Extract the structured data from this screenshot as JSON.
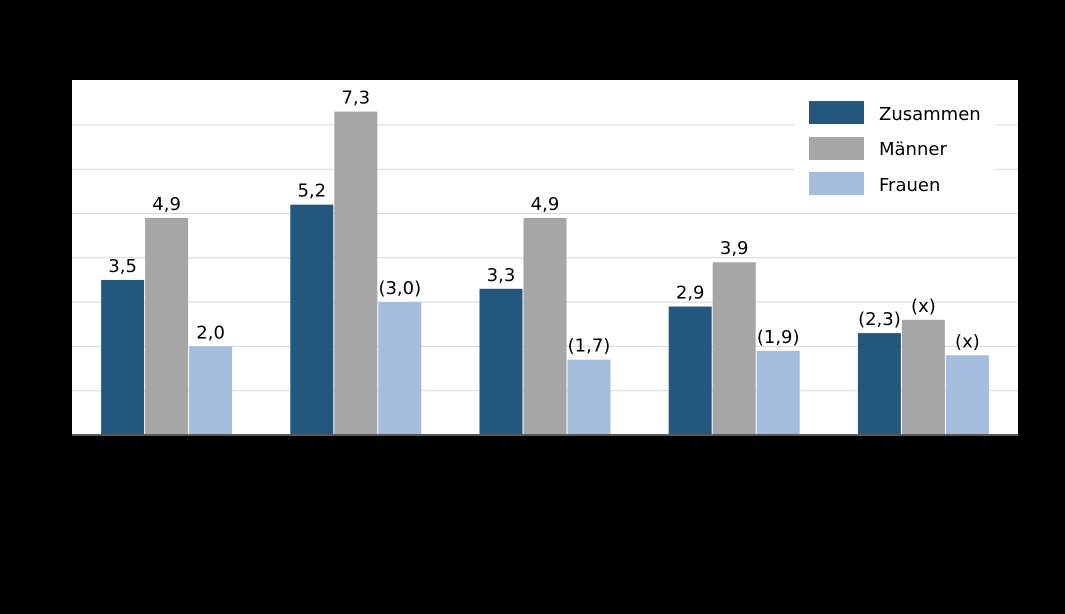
{
  "chart_data": {
    "type": "bar",
    "categories": [
      "",
      "",
      "",
      "",
      ""
    ],
    "series": [
      {
        "name": "Zusammen",
        "color": "#22577e",
        "values": [
          3.5,
          5.2,
          3.3,
          2.9,
          2.3
        ],
        "labels": [
          "3,5",
          "5,2",
          "3,3",
          "2,9",
          "(2,3)"
        ]
      },
      {
        "name": "Männer",
        "color": "#a6a6a6",
        "values": [
          4.9,
          7.3,
          4.9,
          3.9,
          2.6
        ],
        "labels": [
          "4,9",
          "7,3",
          "4,9",
          "3,9",
          "(x)"
        ]
      },
      {
        "name": "Frauen",
        "color": "#a4bddd",
        "values": [
          2.0,
          3.0,
          1.7,
          1.9,
          1.8
        ],
        "labels": [
          "2,0",
          "(3,0)",
          "(1,7)",
          "(1,9)",
          "(x)"
        ]
      }
    ],
    "ylim": [
      0,
      7.5
    ],
    "grid": true,
    "legend_position": "top-right"
  }
}
